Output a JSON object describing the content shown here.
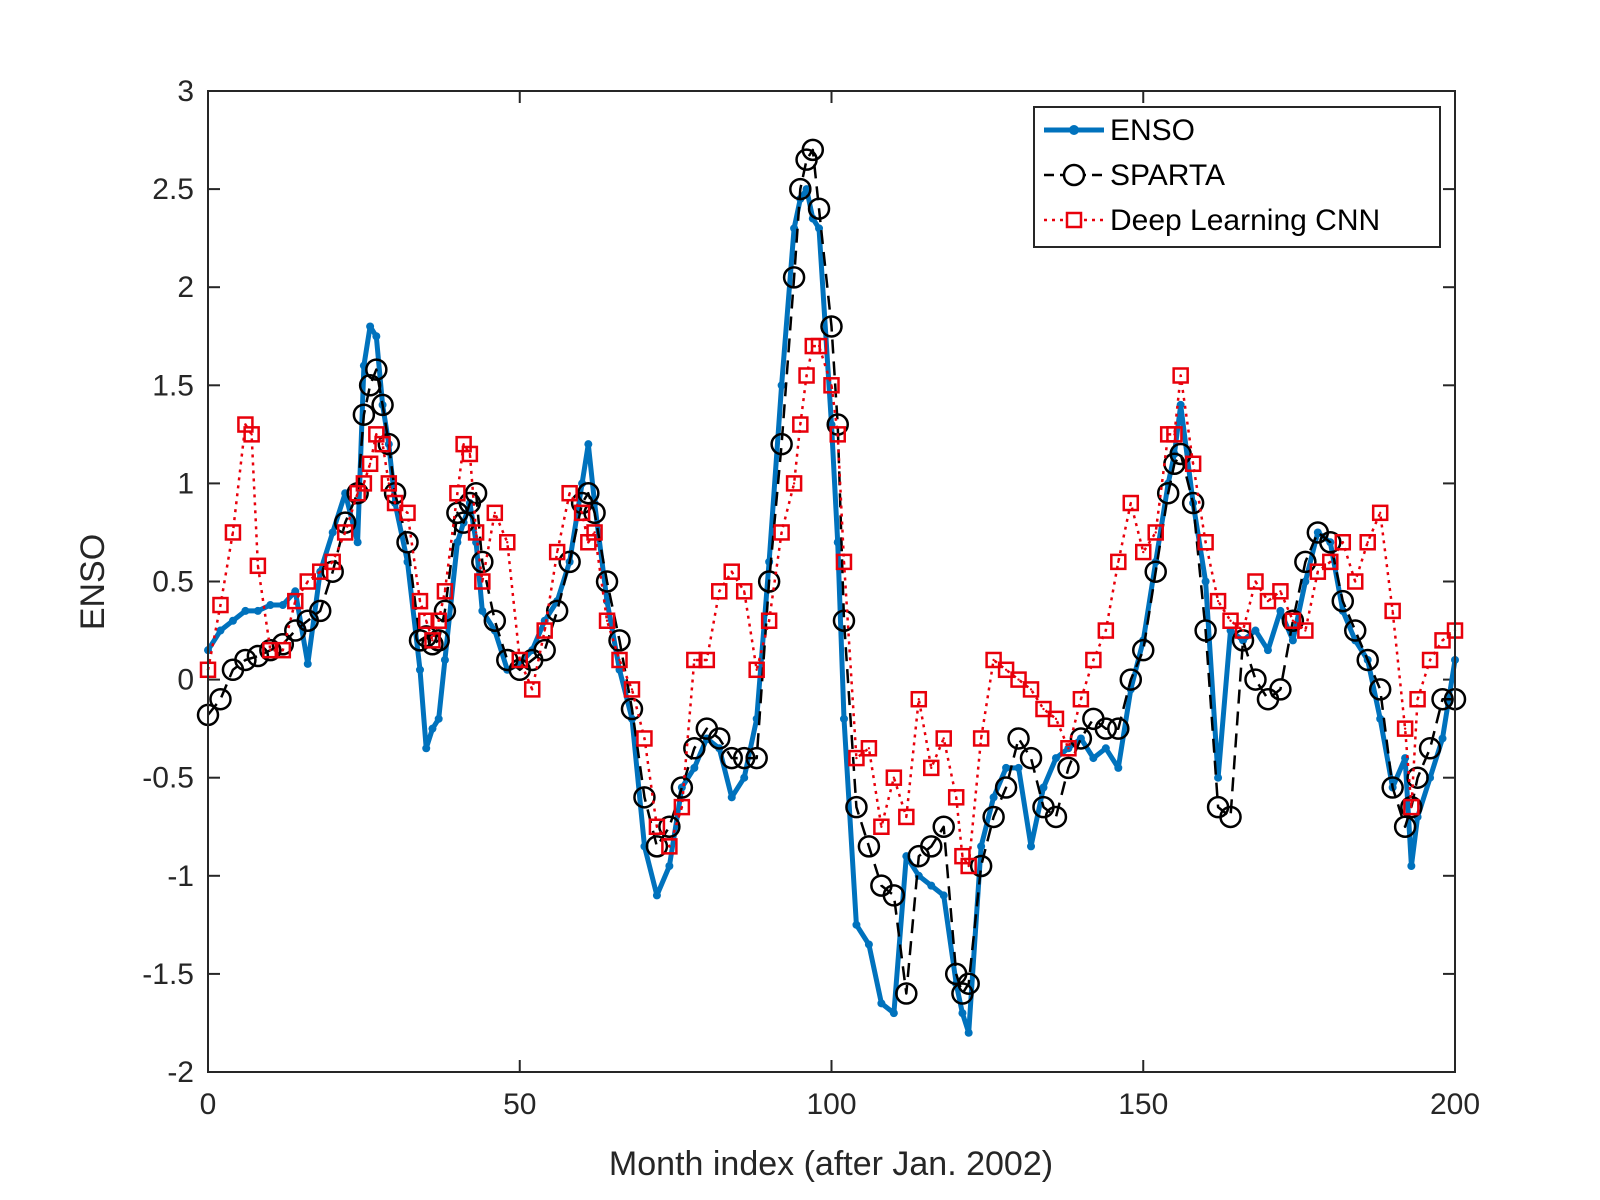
{
  "chart_data": {
    "type": "line",
    "xlabel": "Month index (after Jan. 2002)",
    "ylabel": "ENSO",
    "xlim": [
      0,
      200
    ],
    "ylim": [
      -2,
      3
    ],
    "xticks": [
      0,
      50,
      100,
      150,
      200
    ],
    "yticks": [
      -2,
      -1.5,
      -1,
      -0.5,
      0,
      0.5,
      1,
      1.5,
      2,
      2.5,
      3
    ],
    "xtick_labels": [
      "0",
      "50",
      "100",
      "150",
      "200"
    ],
    "ytick_labels": [
      "-2",
      "-1.5",
      "-1",
      "-0.5",
      "0",
      "0.5",
      "1",
      "1.5",
      "2",
      "2.5",
      "3"
    ],
    "grid": false,
    "legend_position": "top-right",
    "series": [
      {
        "name": "ENSO",
        "color": "#0072BD",
        "style": "solid-dot",
        "x": [
          0,
          2,
          4,
          6,
          8,
          10,
          12,
          14,
          16,
          18,
          20,
          22,
          24,
          25,
          26,
          27,
          28,
          29,
          30,
          32,
          34,
          35,
          36,
          37,
          38,
          40,
          41,
          42,
          43,
          44,
          46,
          48,
          50,
          52,
          54,
          56,
          58,
          60,
          61,
          62,
          64,
          66,
          68,
          70,
          72,
          74,
          76,
          78,
          80,
          82,
          84,
          86,
          88,
          90,
          92,
          94,
          95,
          96,
          97,
          98,
          100,
          101,
          102,
          104,
          106,
          108,
          110,
          112,
          114,
          116,
          118,
          120,
          121,
          122,
          124,
          126,
          128,
          130,
          132,
          134,
          136,
          138,
          140,
          142,
          144,
          146,
          148,
          150,
          152,
          154,
          155,
          156,
          158,
          160,
          162,
          164,
          166,
          168,
          170,
          172,
          174,
          176,
          178,
          180,
          182,
          184,
          186,
          188,
          190,
          192,
          193,
          194,
          196,
          198,
          200
        ],
        "y": [
          0.15,
          0.25,
          0.3,
          0.35,
          0.35,
          0.38,
          0.38,
          0.45,
          0.08,
          0.55,
          0.75,
          0.95,
          0.7,
          1.6,
          1.8,
          1.75,
          1.4,
          1.2,
          0.9,
          0.6,
          0.05,
          -0.35,
          -0.25,
          -0.2,
          0.1,
          0.7,
          0.8,
          0.9,
          0.7,
          0.35,
          0.25,
          0.05,
          0.08,
          0.15,
          0.3,
          0.4,
          0.6,
          1.0,
          1.2,
          0.9,
          0.4,
          0.05,
          -0.2,
          -0.85,
          -1.1,
          -0.95,
          -0.55,
          -0.45,
          -0.3,
          -0.35,
          -0.6,
          -0.5,
          -0.2,
          0.6,
          1.5,
          2.3,
          2.45,
          2.5,
          2.35,
          2.3,
          1.3,
          0.7,
          -0.2,
          -1.25,
          -1.35,
          -1.65,
          -1.7,
          -0.9,
          -1.0,
          -1.05,
          -1.1,
          -1.55,
          -1.7,
          -1.8,
          -0.85,
          -0.6,
          -0.45,
          -0.45,
          -0.85,
          -0.55,
          -0.4,
          -0.35,
          -0.3,
          -0.4,
          -0.35,
          -0.45,
          -0.05,
          0.2,
          0.6,
          1.0,
          1.15,
          1.4,
          0.9,
          0.5,
          -0.5,
          0.25,
          0.2,
          0.25,
          0.15,
          0.35,
          0.2,
          0.5,
          0.75,
          0.7,
          0.35,
          0.2,
          0.1,
          -0.2,
          -0.55,
          -0.4,
          -0.95,
          -0.7,
          -0.5,
          -0.3,
          0.1
        ]
      },
      {
        "name": "SPARTA",
        "color": "#000000",
        "style": "dashed-circle",
        "x": [
          0,
          2,
          4,
          6,
          8,
          10,
          12,
          14,
          16,
          18,
          20,
          22,
          24,
          25,
          26,
          27,
          28,
          29,
          30,
          32,
          34,
          35,
          36,
          37,
          38,
          40,
          41,
          42,
          43,
          44,
          46,
          48,
          50,
          52,
          54,
          56,
          58,
          60,
          61,
          62,
          64,
          66,
          68,
          70,
          72,
          74,
          76,
          78,
          80,
          82,
          84,
          86,
          88,
          90,
          92,
          94,
          95,
          96,
          97,
          98,
          100,
          101,
          102,
          104,
          106,
          108,
          110,
          112,
          114,
          116,
          118,
          120,
          121,
          122,
          124,
          126,
          128,
          130,
          132,
          134,
          136,
          138,
          140,
          142,
          144,
          146,
          148,
          150,
          152,
          154,
          155,
          156,
          158,
          160,
          162,
          164,
          166,
          168,
          170,
          172,
          174,
          176,
          178,
          180,
          182,
          184,
          186,
          188,
          190,
          192,
          193,
          194,
          196,
          198,
          200
        ],
        "y": [
          -0.18,
          -0.1,
          0.05,
          0.1,
          0.12,
          0.15,
          0.18,
          0.25,
          0.3,
          0.35,
          0.55,
          0.8,
          0.95,
          1.35,
          1.5,
          1.58,
          1.4,
          1.2,
          0.95,
          0.7,
          0.2,
          0.22,
          0.18,
          0.2,
          0.35,
          0.85,
          0.8,
          0.9,
          0.95,
          0.6,
          0.3,
          0.1,
          0.05,
          0.1,
          0.15,
          0.35,
          0.6,
          0.9,
          0.95,
          0.85,
          0.5,
          0.2,
          -0.15,
          -0.6,
          -0.85,
          -0.75,
          -0.55,
          -0.35,
          -0.25,
          -0.3,
          -0.4,
          -0.4,
          -0.4,
          0.5,
          1.2,
          2.05,
          2.5,
          2.65,
          2.7,
          2.4,
          1.8,
          1.3,
          0.3,
          -0.65,
          -0.85,
          -1.05,
          -1.1,
          -1.6,
          -0.9,
          -0.85,
          -0.75,
          -1.5,
          -1.6,
          -1.55,
          -0.95,
          -0.7,
          -0.55,
          -0.3,
          -0.4,
          -0.65,
          -0.7,
          -0.45,
          -0.3,
          -0.2,
          -0.25,
          -0.25,
          0.0,
          0.15,
          0.55,
          0.95,
          1.1,
          1.15,
          0.9,
          0.25,
          -0.65,
          -0.7,
          0.2,
          0.0,
          -0.1,
          -0.05,
          0.3,
          0.6,
          0.75,
          0.7,
          0.4,
          0.25,
          0.1,
          -0.05,
          -0.55,
          -0.75,
          -0.65,
          -0.5,
          -0.35,
          -0.1,
          -0.1
        ]
      },
      {
        "name": "Deep Learning CNN",
        "color": "#E8000B",
        "style": "dotted-square",
        "x": [
          0,
          2,
          4,
          6,
          7,
          8,
          10,
          12,
          14,
          16,
          18,
          20,
          22,
          24,
          25,
          26,
          27,
          28,
          29,
          30,
          32,
          34,
          35,
          36,
          37,
          38,
          40,
          41,
          42,
          43,
          44,
          46,
          48,
          50,
          52,
          54,
          56,
          58,
          60,
          61,
          62,
          64,
          66,
          68,
          70,
          72,
          74,
          76,
          78,
          80,
          82,
          84,
          86,
          88,
          90,
          92,
          94,
          95,
          96,
          97,
          98,
          100,
          101,
          102,
          104,
          106,
          108,
          110,
          112,
          114,
          116,
          118,
          120,
          121,
          122,
          124,
          126,
          128,
          130,
          132,
          134,
          136,
          138,
          140,
          142,
          144,
          146,
          148,
          150,
          152,
          154,
          155,
          156,
          158,
          160,
          162,
          164,
          166,
          168,
          170,
          172,
          174,
          176,
          178,
          180,
          182,
          184,
          186,
          188,
          190,
          192,
          193,
          194,
          196,
          198,
          200
        ],
        "y": [
          0.05,
          0.38,
          0.75,
          1.3,
          1.25,
          0.58,
          0.15,
          0.15,
          0.4,
          0.5,
          0.55,
          0.6,
          0.75,
          0.95,
          1.0,
          1.1,
          1.25,
          1.2,
          1.0,
          0.9,
          0.85,
          0.4,
          0.3,
          0.2,
          0.3,
          0.45,
          0.95,
          1.2,
          1.15,
          0.75,
          0.5,
          0.85,
          0.7,
          0.1,
          -0.05,
          0.25,
          0.65,
          0.95,
          0.85,
          0.7,
          0.75,
          0.3,
          0.1,
          -0.05,
          -0.3,
          -0.75,
          -0.85,
          -0.65,
          0.1,
          0.1,
          0.45,
          0.55,
          0.45,
          0.05,
          0.3,
          0.75,
          1.0,
          1.3,
          1.55,
          1.7,
          1.7,
          1.5,
          1.25,
          0.6,
          -0.4,
          -0.35,
          -0.75,
          -0.5,
          -0.7,
          -0.1,
          -0.45,
          -0.3,
          -0.6,
          -0.9,
          -0.95,
          -0.3,
          0.1,
          0.05,
          0.0,
          -0.05,
          -0.15,
          -0.2,
          -0.35,
          -0.1,
          0.1,
          0.25,
          0.6,
          0.9,
          0.65,
          0.75,
          1.25,
          1.25,
          1.55,
          1.1,
          0.7,
          0.4,
          0.3,
          0.25,
          0.5,
          0.4,
          0.45,
          0.3,
          0.25,
          0.55,
          0.6,
          0.7,
          0.5,
          0.7,
          0.85,
          0.35,
          -0.25,
          -0.65,
          -0.1,
          0.1,
          0.2,
          0.25
        ]
      }
    ]
  }
}
